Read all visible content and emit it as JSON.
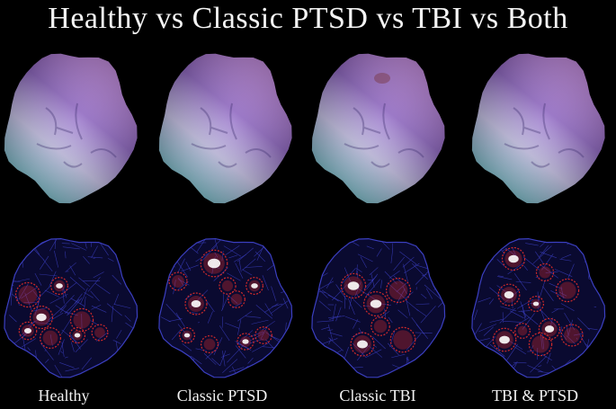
{
  "title": "Healthy vs Classic PTSD vs TBI vs Both",
  "panels": [
    {
      "label": "Healthy"
    },
    {
      "label": "Classic PTSD"
    },
    {
      "label": "Classic TBI"
    },
    {
      "label": "TBI & PTSD"
    }
  ],
  "colors": {
    "background": "#000000",
    "surface_top": "#8a5fc0",
    "surface_mid": "#b57bd2",
    "surface_bottom": "#7fd8e0",
    "mesh": "#3b3fc0",
    "hot": "#d12a2a",
    "hottest": "#ffffff"
  }
}
